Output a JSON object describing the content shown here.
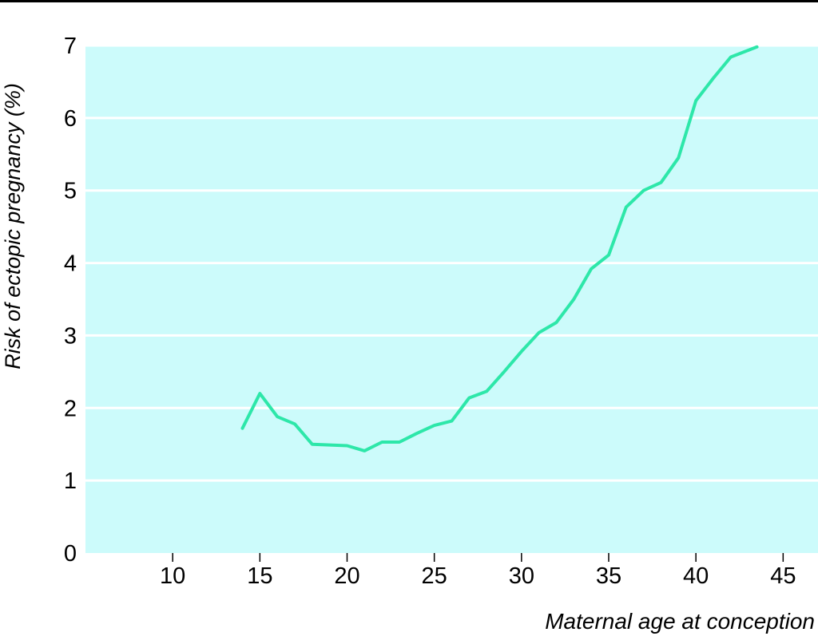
{
  "chart_data": {
    "type": "line",
    "xlabel": "Maternal age at conception",
    "ylabel": "Risk of ectopic pregnancy (%)",
    "xlim": [
      5,
      47
    ],
    "ylim": [
      0,
      7
    ],
    "xticks": [
      10,
      15,
      20,
      25,
      30,
      35,
      40,
      45
    ],
    "yticks": [
      0,
      1,
      2,
      3,
      4,
      5,
      6,
      7
    ],
    "grid": "horizontal",
    "colors": {
      "plot_background": "#ccfbfb",
      "line": "#2de7a9",
      "gridline": "#ffffff",
      "text": "#000000"
    },
    "series": [
      {
        "x": [
          14,
          15,
          16,
          17,
          18,
          19,
          20,
          21,
          22,
          23,
          24,
          25,
          26,
          27,
          28,
          29,
          30,
          31,
          32,
          33,
          34,
          35,
          36,
          37,
          38,
          39,
          40,
          41,
          42,
          43.5
        ],
        "values": [
          1.72,
          2.2,
          1.88,
          1.78,
          1.5,
          1.49,
          1.48,
          1.41,
          1.53,
          1.53,
          1.65,
          1.76,
          1.82,
          2.14,
          2.23,
          2.5,
          2.78,
          3.04,
          3.18,
          3.5,
          3.92,
          4.11,
          4.77,
          5.0,
          5.11,
          5.45,
          6.24,
          6.55,
          6.84,
          6.98
        ]
      }
    ]
  }
}
